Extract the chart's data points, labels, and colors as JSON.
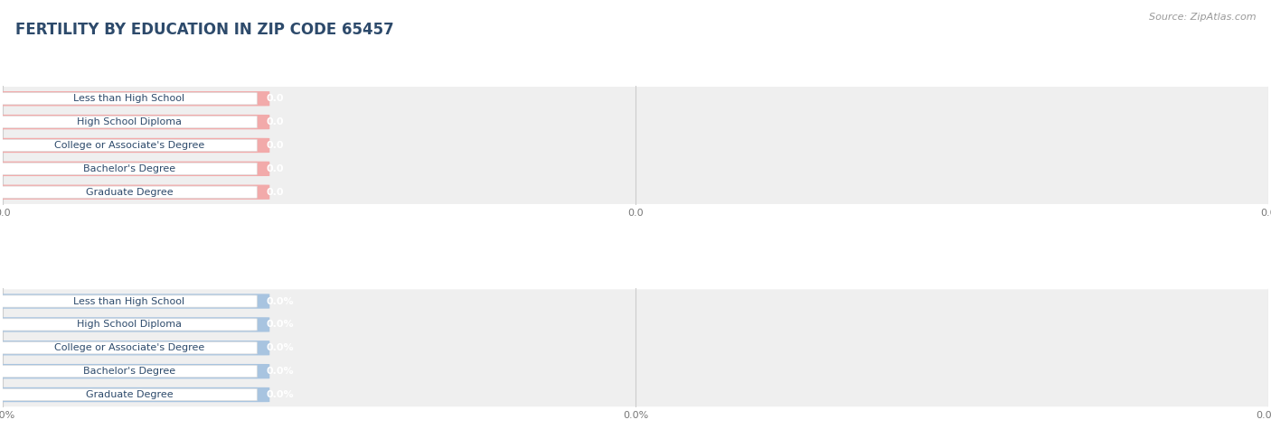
{
  "title": "FERTILITY BY EDUCATION IN ZIP CODE 65457",
  "source_text": "Source: ZipAtlas.com",
  "categories": [
    "Less than High School",
    "High School Diploma",
    "College or Associate's Degree",
    "Bachelor's Degree",
    "Graduate Degree"
  ],
  "values_top": [
    0.0,
    0.0,
    0.0,
    0.0,
    0.0
  ],
  "values_bottom": [
    0.0,
    0.0,
    0.0,
    0.0,
    0.0
  ],
  "bar_color_top": "#f2aaaa",
  "bar_color_bottom": "#a8c4e0",
  "label_bg_color": "#ffffff",
  "label_text_color": "#2d4a6b",
  "value_text_color_top": "#ffffff",
  "value_text_color_bottom": "#ffffff",
  "background_color": "#ffffff",
  "row_bg_color": "#efefef",
  "title_color": "#2d4a6b",
  "source_color": "#999999",
  "tick_label_color": "#777777",
  "bar_height": 0.62,
  "title_fontsize": 12,
  "label_fontsize": 8,
  "value_fontsize": 8,
  "tick_fontsize": 8,
  "source_fontsize": 8
}
